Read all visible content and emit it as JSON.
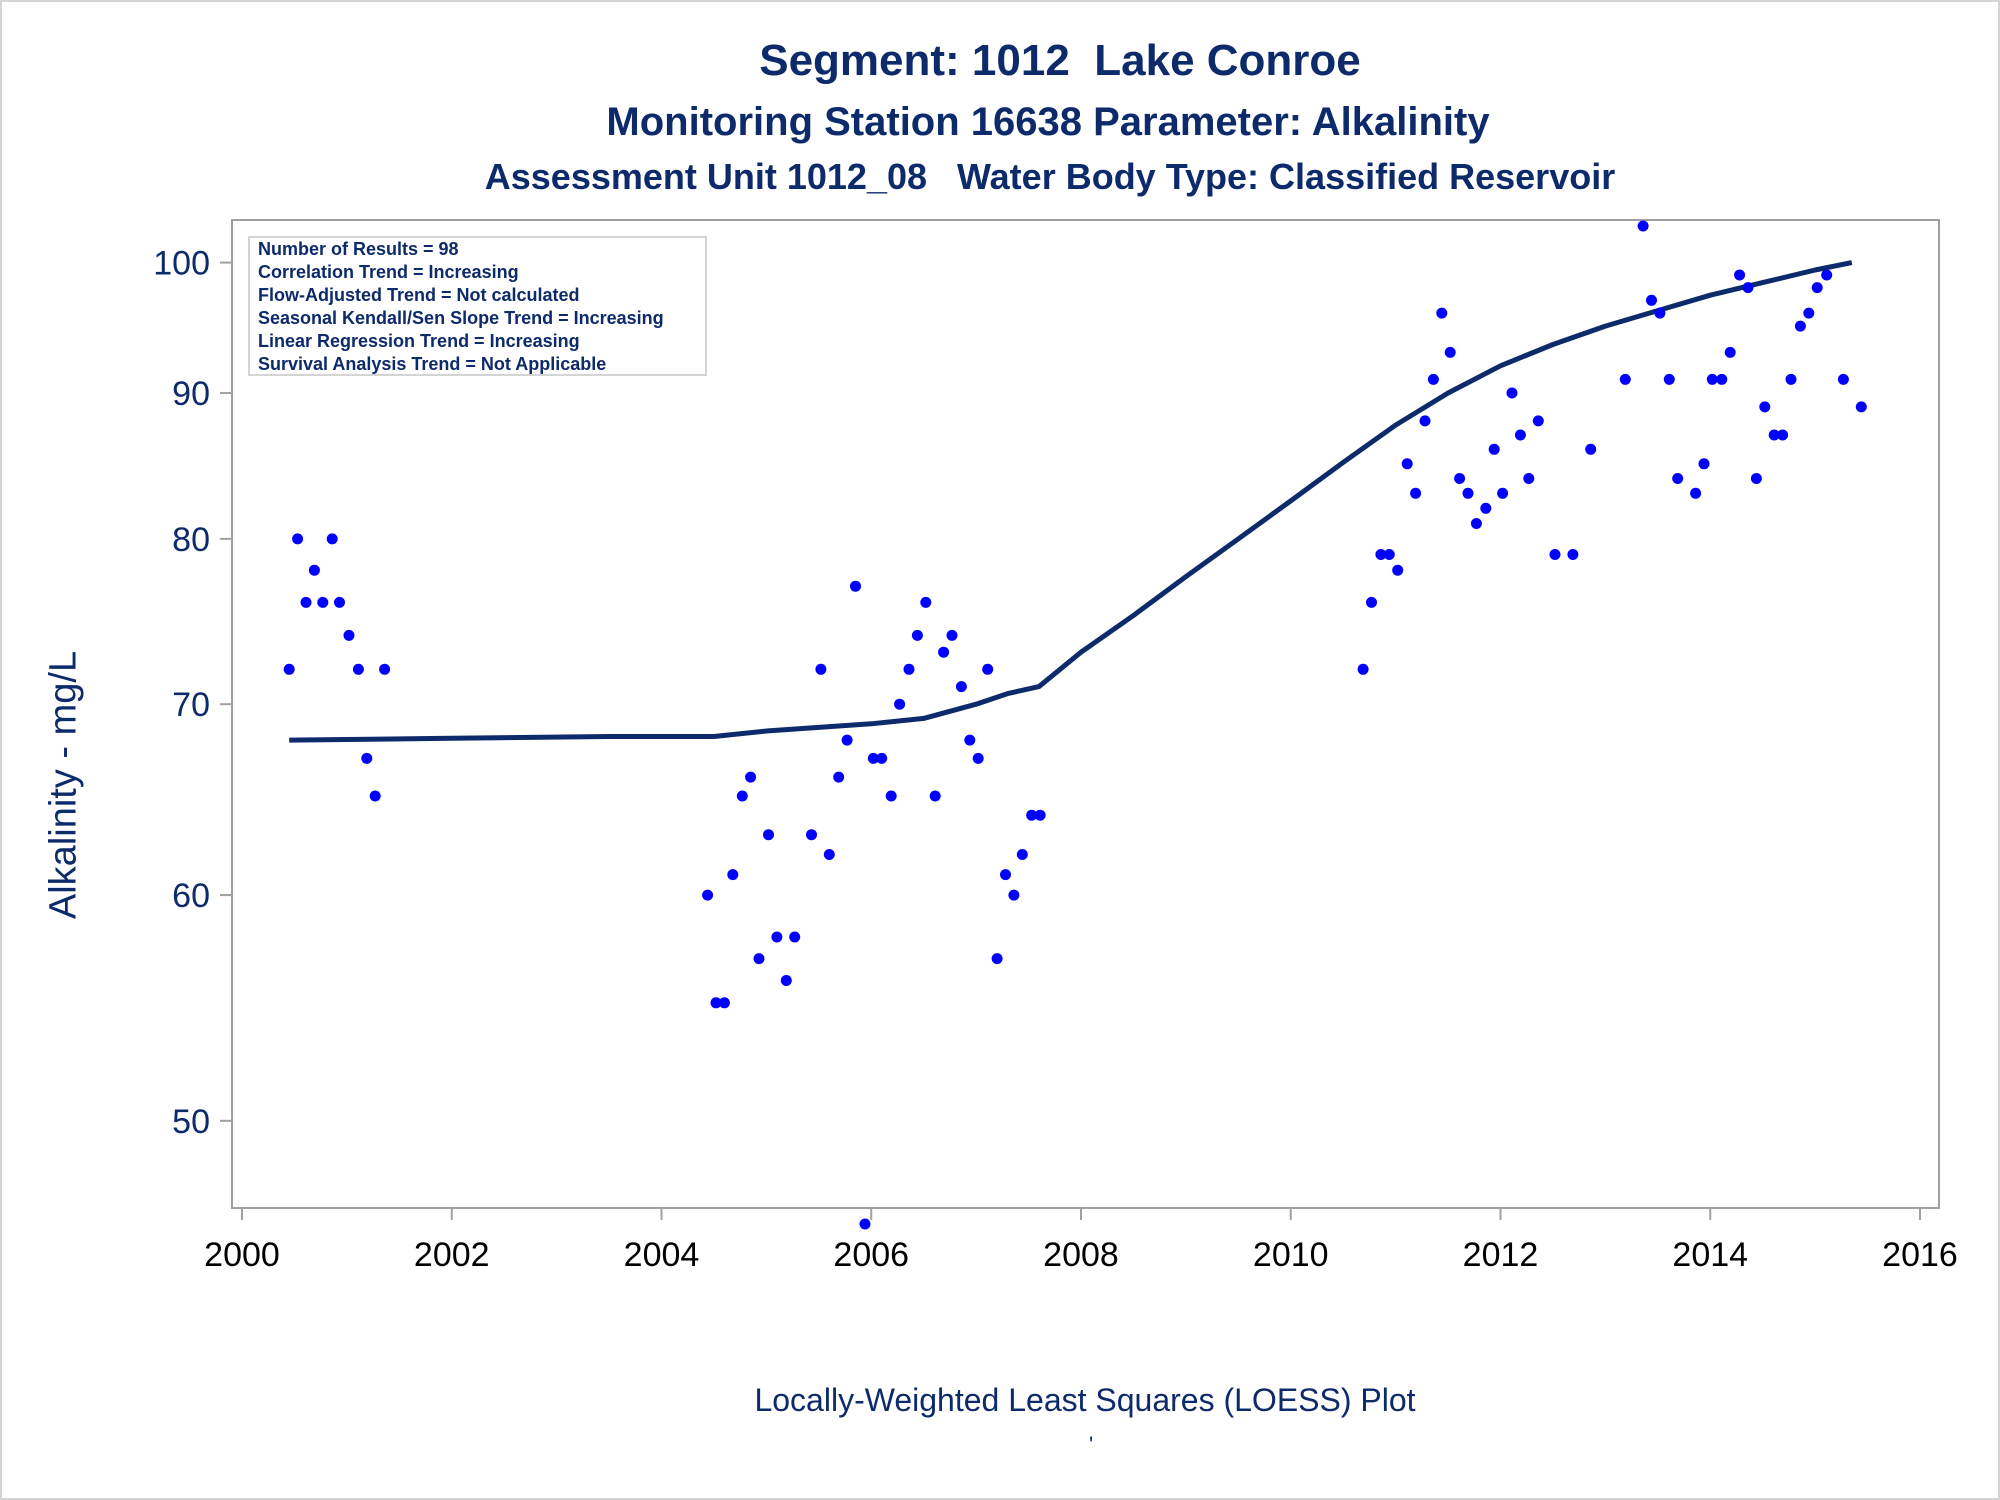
{
  "chart_data": {
    "type": "scatter",
    "title": "Segment: 1012  Lake Conroe",
    "subtitle": "Monitoring Station 16638 Parameter: Alkalinity",
    "subtitle2": "Assessment Unit 1012_08   Water Body Type: Classified Reservoir",
    "xlabel": "",
    "ylabel": "Alkalinity - mg/L",
    "footnote": "Locally-Weighted Least Squares (LOESS) Plot",
    "footnote_mark": "'",
    "y_scale": "log",
    "xlim": [
      2000,
      2016
    ],
    "ylim": [
      46.6,
      103.5
    ],
    "x_ticks": [
      2000,
      2002,
      2004,
      2006,
      2008,
      2010,
      2012,
      2014,
      2016
    ],
    "y_ticks": [
      50,
      60,
      70,
      80,
      90,
      100
    ],
    "grid": false,
    "stats_box": [
      "Number of Results = 98",
      "Correlation Trend = Increasing",
      "Flow-Adjusted Trend = Not calculated",
      "Seasonal Kendall/Sen Slope Trend = Increasing",
      "Linear Regression Trend = Increasing",
      "Survival Analysis Trend = Not Applicable"
    ],
    "colors": {
      "points": "#0000ff",
      "loess": "#0d2a6b",
      "text": "#0d2a6b",
      "axis": "#a0a0a0"
    },
    "series": [
      {
        "type": "scatter",
        "x": [
          2000.45,
          2000.53,
          2000.61,
          2000.69,
          2000.77,
          2000.86,
          2000.93,
          2001.02,
          2001.11,
          2001.19,
          2001.27,
          2001.36,
          2004.44,
          2004.52,
          2004.6,
          2004.68,
          2004.77,
          2004.85,
          2004.93,
          2005.02,
          2005.1,
          2005.19,
          2005.27,
          2005.43,
          2005.52,
          2005.6,
          2005.69,
          2005.77,
          2005.85,
          2005.94,
          2006.02,
          2006.1,
          2006.19,
          2006.27,
          2006.36,
          2006.44,
          2006.52,
          2006.61,
          2006.69,
          2006.77,
          2006.86,
          2006.94,
          2007.02,
          2007.11,
          2007.2,
          2007.28,
          2007.36,
          2007.44,
          2007.53,
          2007.61,
          2010.69,
          2010.77,
          2010.86,
          2010.94,
          2011.02,
          2011.11,
          2011.19,
          2011.28,
          2011.36,
          2011.44,
          2011.52,
          2011.61,
          2011.69,
          2011.77,
          2011.86,
          2011.94,
          2012.02,
          2012.11,
          2012.19,
          2012.27,
          2012.36,
          2012.52,
          2012.69,
          2012.86,
          2013.19,
          2013.36,
          2013.44,
          2013.52,
          2013.61,
          2013.69,
          2013.86,
          2013.94,
          2014.02,
          2014.11,
          2014.19,
          2014.28,
          2014.36,
          2014.44,
          2014.52,
          2014.61,
          2014.69,
          2014.77,
          2014.86,
          2014.94,
          2015.02,
          2015.11,
          2015.27,
          2015.44
        ],
        "y": [
          72,
          80,
          76,
          78,
          76,
          80,
          76,
          74,
          72,
          67,
          65,
          72,
          60,
          55,
          55,
          61,
          65,
          66,
          57,
          63,
          58,
          56,
          58,
          63,
          72,
          62,
          66,
          68,
          77,
          46,
          67,
          67,
          65,
          70,
          72,
          74,
          76,
          65,
          73,
          74,
          71,
          68,
          67,
          72,
          57,
          61,
          60,
          62,
          64,
          64,
          72,
          76,
          79,
          79,
          78,
          85,
          83,
          88,
          91,
          96,
          93,
          84,
          83,
          81,
          82,
          86,
          83,
          90,
          87,
          84,
          88,
          79,
          79,
          86,
          91,
          103,
          97,
          96,
          91,
          84,
          83,
          85,
          91,
          91,
          93,
          99,
          98,
          84,
          89,
          87,
          87,
          91,
          95,
          96,
          98,
          99,
          91,
          89
        ]
      },
      {
        "type": "line",
        "name": "",
        "x": [
          2000.45,
          2002.0,
          2003.5,
          2004.5,
          2005.0,
          2005.5,
          2006.0,
          2006.5,
          2007.0,
          2007.3,
          2007.6,
          2008.0,
          2008.5,
          2009.0,
          2009.5,
          2010.0,
          2010.5,
          2011.0,
          2011.5,
          2012.0,
          2012.5,
          2013.0,
          2013.5,
          2014.0,
          2014.5,
          2015.0,
          2015.35
        ],
        "y": [
          68.0,
          68.1,
          68.2,
          68.2,
          68.5,
          68.7,
          68.9,
          69.2,
          70.0,
          70.6,
          71.0,
          73.0,
          75.2,
          77.6,
          80.0,
          82.5,
          85.1,
          87.7,
          90.0,
          92.0,
          93.6,
          95.0,
          96.2,
          97.4,
          98.4,
          99.4,
          100.0
        ]
      }
    ]
  }
}
